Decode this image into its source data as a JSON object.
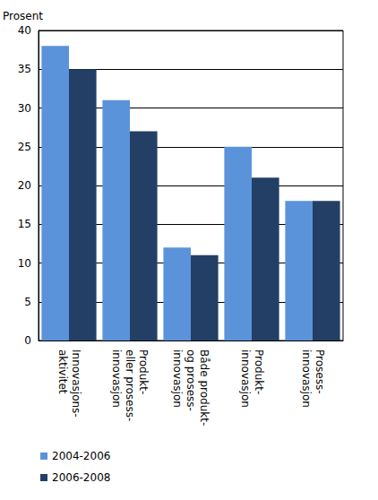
{
  "chart_data": {
    "type": "bar",
    "y_label": "Prosent",
    "categories": [
      "Innovasjons-\naktivitet",
      "Produkt-\neller prosess-\ninnovasjon",
      "Både produkt-\nog prosess-\ninnovasjon",
      "Produkt-\ninnovasjon",
      "Prosess-\ninnovasjon"
    ],
    "series": [
      {
        "name": "2004-2006",
        "color": "#5b93da",
        "values": [
          38,
          31,
          12,
          25,
          18
        ]
      },
      {
        "name": "2006-2008",
        "color": "#233f66",
        "values": [
          35,
          27,
          11,
          21,
          18
        ]
      }
    ],
    "ylim": [
      0,
      40
    ],
    "yticks": [
      0,
      5,
      10,
      15,
      20,
      25,
      30,
      35,
      40
    ],
    "grid": true,
    "legend": "bottom-left"
  }
}
